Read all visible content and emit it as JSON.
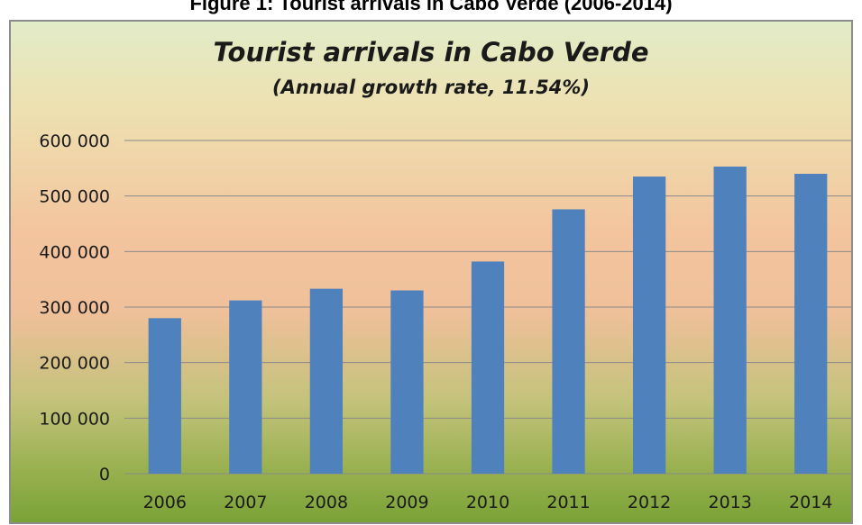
{
  "caption": "Figure 1: Tourist arrivals in Cabo Verde (2006-2014)",
  "chart_data": {
    "type": "bar",
    "title": "Tourist arrivals in Cabo Verde",
    "subtitle": "(Annual growth rate, 11.54%)",
    "xlabel": "",
    "ylabel": "",
    "categories": [
      "2006",
      "2007",
      "2008",
      "2009",
      "2010",
      "2011",
      "2012",
      "2013",
      "2014"
    ],
    "values": [
      280000,
      312000,
      333000,
      330000,
      382000,
      476000,
      535000,
      553000,
      540000
    ],
    "ylim": [
      0,
      600000
    ],
    "yticks": [
      0,
      100000,
      200000,
      300000,
      400000,
      500000,
      600000
    ],
    "ytick_labels": [
      "0",
      "100 000",
      "200 000",
      "300 000",
      "400 000",
      "500 000",
      "600 000"
    ],
    "grid": true,
    "legend": "none",
    "bar_color": "#4f81bd",
    "gridline_color": "#8a8a8a"
  }
}
